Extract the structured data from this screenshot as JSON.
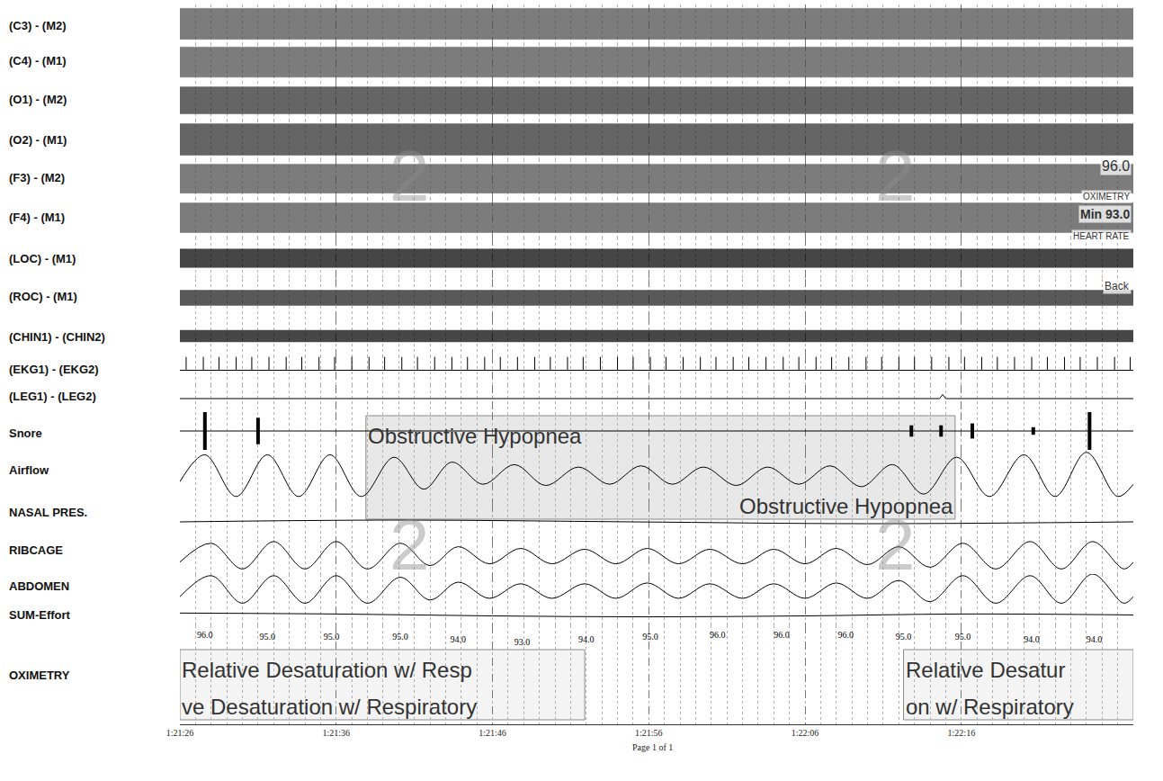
{
  "chart_data": {
    "type": "line",
    "xlim": [
      4886,
      4947
    ],
    "xticks": [
      {
        "value": 4886,
        "label": "1:21:26"
      },
      {
        "value": 4896,
        "label": "1:21:36"
      },
      {
        "value": 4906,
        "label": "1:21:46"
      },
      {
        "value": 4916,
        "label": "1:21:56"
      },
      {
        "value": 4926,
        "label": "1:22:06"
      },
      {
        "value": 4936,
        "label": "1:22:16"
      }
    ],
    "grid": true,
    "tick_labels": "x",
    "series": [
      {
        "name": "(C3) - (M2)",
        "type": "band",
        "amplitude": 0.8,
        "ylim": [
          -1,
          1
        ],
        "color": "#4a4a4a"
      },
      {
        "name": "(C4) - (M1)",
        "type": "band",
        "amplitude": 0.8,
        "ylim": [
          -1,
          1
        ],
        "color": "#4a4a4a"
      },
      {
        "name": "(O1) - (M2)",
        "type": "band",
        "amplitude": 0.7,
        "ylim": [
          -1,
          1
        ],
        "color": "#2a2a2a"
      },
      {
        "name": "(O2) - (M1)",
        "type": "band",
        "amplitude": 0.8,
        "ylim": [
          -1,
          1
        ],
        "color": "#2a2a2a"
      },
      {
        "name": "(F3) - (M2)",
        "type": "band",
        "amplitude": 0.75,
        "ylim": [
          -1,
          1
        ],
        "color": "#4a4a4a"
      },
      {
        "name": "(F4) - (M1)",
        "type": "band",
        "amplitude": 0.75,
        "ylim": [
          -1,
          1
        ],
        "color": "#4a4a4a"
      },
      {
        "name": "(LOC) - (M1)",
        "type": "band",
        "amplitude": 0.45,
        "ylim": [
          -1,
          1
        ],
        "color": "#000000"
      },
      {
        "name": "(ROC) - (M1)",
        "type": "band",
        "amplitude": 0.4,
        "ylim": [
          -1,
          1
        ],
        "color": "#1a1a1a"
      },
      {
        "name": "(CHIN1) - (CHIN2)",
        "type": "band",
        "amplitude": 0.3,
        "ylim": [
          -1,
          1
        ],
        "color": "#000000"
      },
      {
        "name": "(EKG1) - (EKG2)",
        "type": "spikes",
        "amplitude": 0.9,
        "ylim": [
          -1,
          1
        ],
        "color": "#000000",
        "x": [
          4886.4,
          4887.5,
          4888.5,
          4889.6,
          4890.6,
          4891.7,
          4892.8,
          4893.8,
          4894.9,
          4895.9,
          4897.0,
          4898.1,
          4899.1,
          4900.2,
          4901.2,
          4902.3,
          4903.4,
          4904.4,
          4905.5,
          4906.5,
          4907.6,
          4908.7,
          4909.7,
          4910.8,
          4911.8,
          4912.9,
          4914.0,
          4915.0,
          4916.1,
          4917.1,
          4918.2,
          4919.3,
          4920.3,
          4921.4,
          4922.4,
          4923.5,
          4924.6,
          4925.6,
          4926.7,
          4927.7,
          4928.8,
          4929.9,
          4930.9,
          4932.0,
          4933.0,
          4934.1,
          4935.2,
          4936.2,
          4937.3,
          4938.3,
          4939.4,
          4940.5,
          4941.5,
          4942.6,
          4943.6,
          4944.7,
          4945.8,
          4946.8
        ]
      },
      {
        "name": "(LEG1) - (LEG2)",
        "type": "line",
        "ylim": [
          -1,
          1
        ],
        "color": "#000000",
        "x": [
          4886,
          4934.6,
          4934.8,
          4935.0,
          4947
        ],
        "values": [
          0,
          0,
          0.3,
          0,
          0
        ]
      },
      {
        "name": "Snore",
        "type": "bursts",
        "ylim": [
          -1,
          1
        ],
        "color": "#000000",
        "x": [
          4887.6,
          4891.0,
          4932.8,
          4934.7,
          4936.7,
          4940.6,
          4944.2
        ],
        "values": [
          1.0,
          0.7,
          0.3,
          0.3,
          0.4,
          0.2,
          1.0
        ]
      },
      {
        "name": "Airflow",
        "type": "line",
        "line_style": "spline",
        "ylim": [
          -1.1,
          1.1
        ],
        "color": "#000000",
        "x": [
          4886,
          4887.6,
          4889.6,
          4891.6,
          4893.6,
          4895.6,
          4897.6,
          4899.7,
          4901.6,
          4903.4,
          4905.4,
          4907.4,
          4909.4,
          4911.5,
          4913.5,
          4915.5,
          4917.5,
          4919.5,
          4921.6,
          4923.6,
          4925.6,
          4927.6,
          4929.6,
          4931.6,
          4933.6,
          4935.7,
          4937.8,
          4940.0,
          4942.0,
          4944.0,
          4946.0,
          4947
        ],
        "values": [
          -0.2,
          0.9,
          -0.8,
          0.9,
          -0.8,
          0.9,
          -0.8,
          0.8,
          -0.5,
          0.6,
          -0.3,
          0.5,
          -0.35,
          0.4,
          -0.3,
          0.45,
          -0.3,
          0.4,
          -0.35,
          0.4,
          -0.3,
          0.45,
          -0.4,
          0.5,
          -0.7,
          0.8,
          -0.8,
          0.9,
          -0.8,
          1.0,
          -0.8,
          -0.3
        ]
      },
      {
        "name": "NASAL PRES.",
        "type": "line",
        "line_style": "spline",
        "ylim": [
          -1,
          1
        ],
        "color": "#000000",
        "x": [
          4886,
          4900,
          4915,
          4930,
          4947
        ],
        "values": [
          0,
          0.1,
          0,
          -0.1,
          0
        ]
      },
      {
        "name": "RIBCAGE",
        "type": "line",
        "line_style": "spline",
        "ylim": [
          -1,
          1
        ],
        "color": "#000000",
        "x": [
          4886,
          4888.0,
          4890.0,
          4892.0,
          4894.0,
          4896.0,
          4898.0,
          4900.1,
          4902.0,
          4903.8,
          4905.8,
          4907.8,
          4909.8,
          4911.9,
          4913.9,
          4915.9,
          4917.9,
          4919.9,
          4922.0,
          4924.0,
          4926.0,
          4928.0,
          4930.0,
          4932.0,
          4934.0,
          4936.1,
          4938.2,
          4940.4,
          4942.4,
          4944.4,
          4946.4,
          4947
        ],
        "values": [
          -0.3,
          0.8,
          -0.7,
          0.9,
          -0.7,
          0.9,
          -0.7,
          0.8,
          -0.5,
          0.6,
          -0.4,
          0.5,
          -0.4,
          0.45,
          -0.4,
          0.5,
          -0.4,
          0.45,
          -0.4,
          0.45,
          -0.4,
          0.5,
          -0.45,
          0.6,
          -0.6,
          0.8,
          -0.7,
          0.9,
          -0.7,
          0.9,
          -0.7,
          -0.3
        ]
      },
      {
        "name": "ABDOMEN",
        "type": "line",
        "line_style": "spline",
        "ylim": [
          -1,
          1
        ],
        "color": "#000000",
        "x": [
          4886,
          4888.0,
          4890.0,
          4892.0,
          4894.0,
          4896.0,
          4898.0,
          4900.1,
          4902.0,
          4903.8,
          4905.8,
          4907.8,
          4909.8,
          4911.9,
          4913.9,
          4915.9,
          4917.9,
          4919.9,
          4922.0,
          4924.0,
          4926.0,
          4928.0,
          4930.0,
          4932.0,
          4934.0,
          4936.1,
          4938.2,
          4940.4,
          4942.4,
          4944.4,
          4946.4,
          4947
        ],
        "values": [
          -0.4,
          0.9,
          -0.8,
          0.9,
          -0.8,
          0.9,
          -0.8,
          0.8,
          -0.6,
          0.5,
          -0.5,
          0.4,
          -0.5,
          0.4,
          -0.5,
          0.45,
          -0.5,
          0.4,
          -0.5,
          0.4,
          -0.5,
          0.45,
          -0.5,
          0.6,
          -0.7,
          0.9,
          -0.8,
          0.9,
          -0.8,
          1.0,
          -0.8,
          -0.4
        ]
      },
      {
        "name": "SUM-Effort",
        "type": "line",
        "line_style": "spline",
        "ylim": [
          -1,
          1
        ],
        "color": "#000000",
        "x": [
          4886,
          4896,
          4906,
          4916,
          4926,
          4936,
          4947
        ],
        "values": [
          0.3,
          0.2,
          0,
          -0.1,
          0,
          0.2,
          0.1
        ]
      },
      {
        "name": "OXIMETRY",
        "type": "text",
        "data_labels": true,
        "ylim": [
          60,
          100
        ],
        "color": "#000000",
        "x": [
          4887.6,
          4891.6,
          4895.7,
          4900.1,
          4903.8,
          4907.9,
          4912.0,
          4916.1,
          4920.4,
          4924.5,
          4928.6,
          4932.3,
          4936.1,
          4940.5,
          4944.5
        ],
        "values": [
          96,
          95,
          95,
          95,
          94,
          93,
          94,
          95,
          96,
          96,
          96,
          95,
          95,
          94,
          94
        ],
        "value_labels": [
          "96.0",
          "95.0",
          "95.0",
          "95.0",
          "94.0",
          "93.0",
          "94.0",
          "95.0",
          "96.0",
          "96.0",
          "96.0",
          "95.0",
          "95.0",
          "94.0",
          "94.0"
        ]
      }
    ],
    "events": [
      {
        "channel": "Airflow",
        "start": 4897.9,
        "end": 4935.6,
        "texts": [
          "Obstructive Hypopnea",
          "Obstructive Hypopnea"
        ]
      },
      {
        "channel": "OXIMETRY",
        "start": 4886,
        "end": 4911.9,
        "texts": [
          "Relative Desaturation w/ Resp",
          "ve Desaturation w/ Respiratory"
        ]
      },
      {
        "channel": "OXIMETRY",
        "start": 4932.3,
        "end": 4947,
        "texts": [
          "Relative Desatur",
          "on w/ Respiratory"
        ]
      }
    ],
    "stage_markers": [
      {
        "time": 4900.7,
        "label": "2"
      },
      {
        "time": 4931.8,
        "label": "2"
      }
    ],
    "side_panel": [
      "96.0",
      "OXIMETRY",
      "Min 93.0",
      "HEART RATE",
      "Back"
    ],
    "footer": "Page 1 of 1"
  }
}
